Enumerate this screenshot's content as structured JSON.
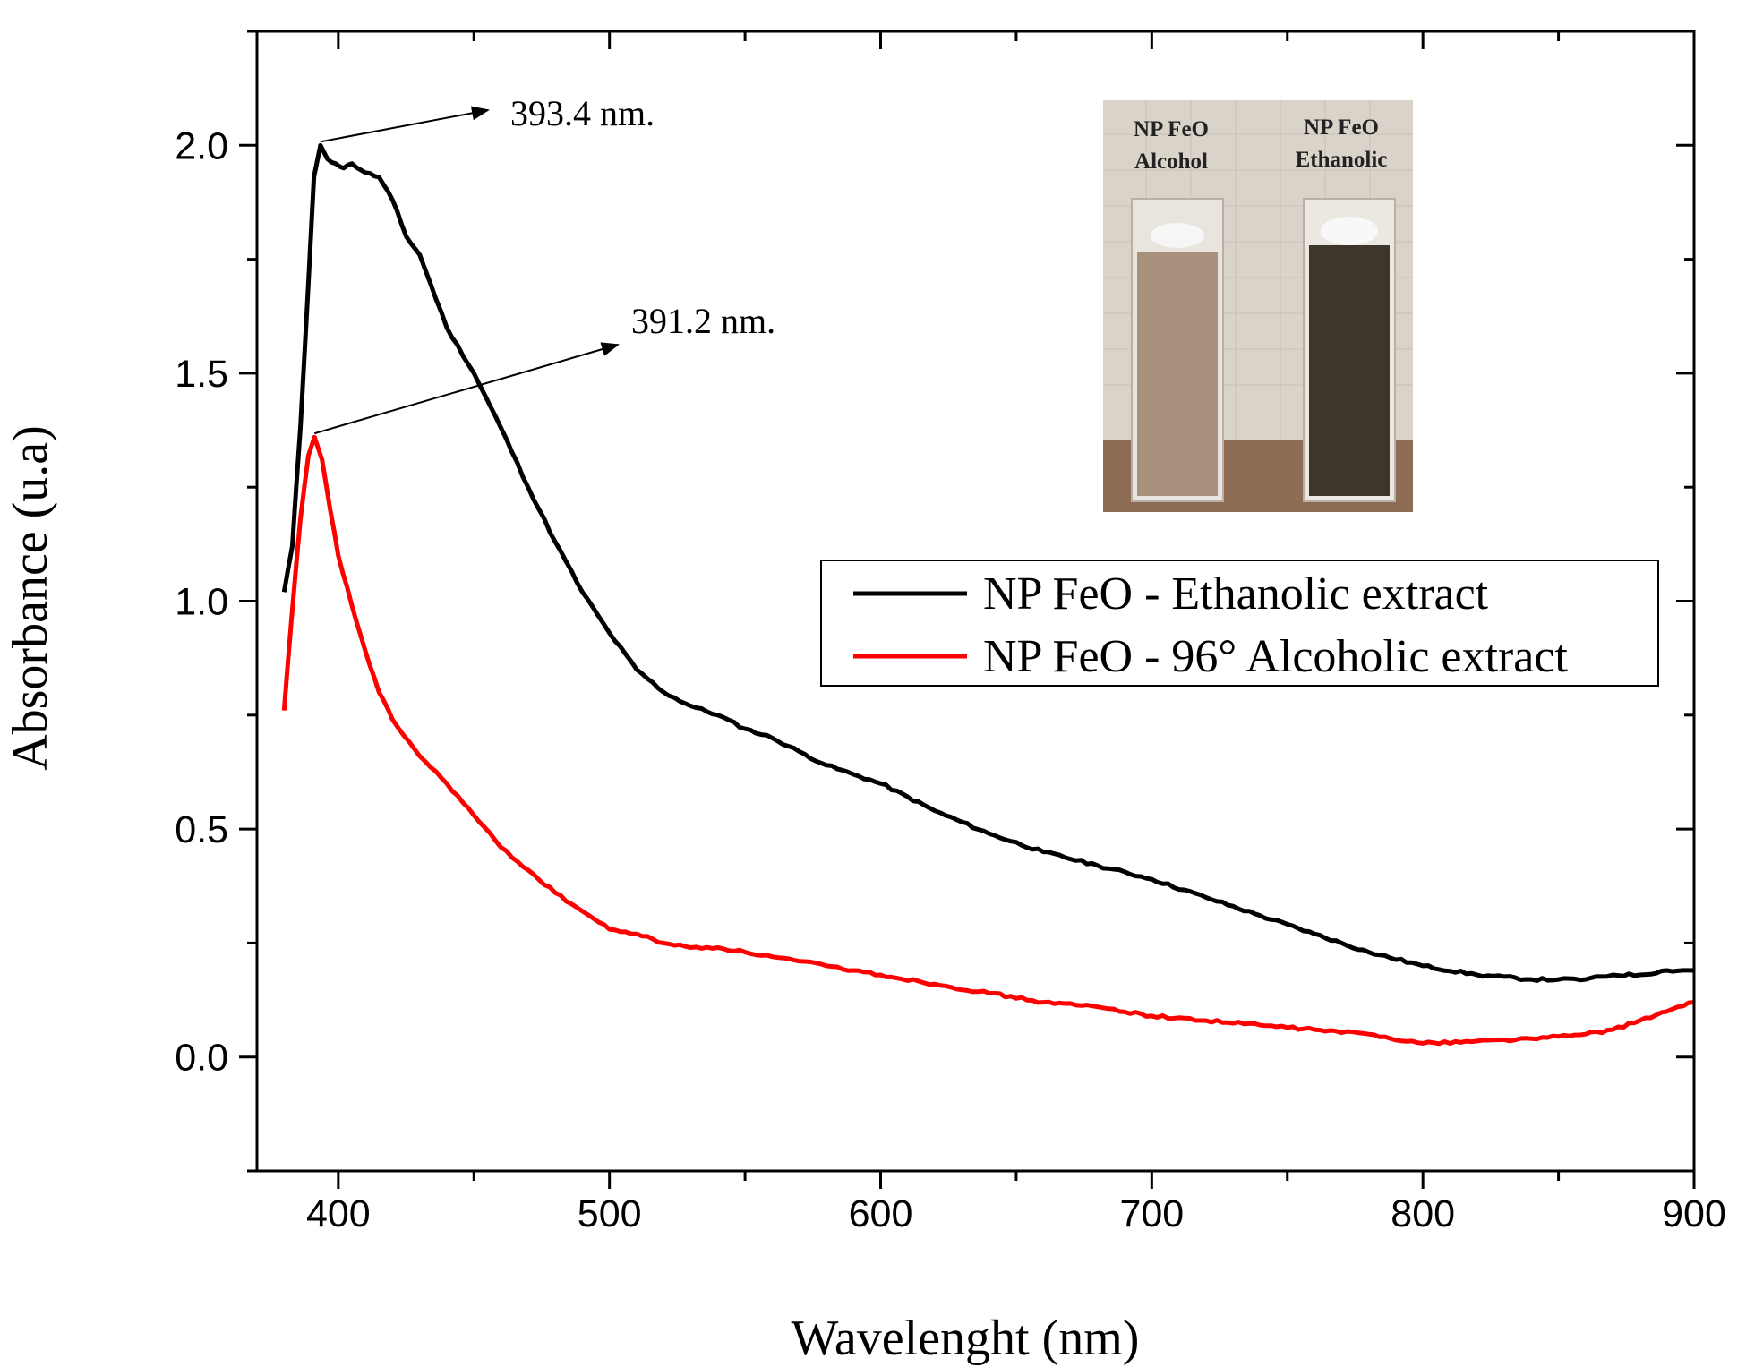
{
  "chart_data": {
    "type": "line",
    "xlabel": "Wavelenght (nm)",
    "ylabel": "Absorbance (u.a)",
    "xlim": [
      370,
      900
    ],
    "ylim": [
      -0.25,
      2.25
    ],
    "x_ticks": [
      400,
      500,
      600,
      700,
      800,
      900
    ],
    "y_ticks": [
      0.0,
      0.5,
      1.0,
      1.5,
      2.0
    ],
    "x_tick_labels": [
      "400",
      "500",
      "600",
      "700",
      "800",
      "900"
    ],
    "y_tick_labels": [
      "0.0",
      "0.5",
      "1.0",
      "1.5",
      "2.0"
    ],
    "grid": false,
    "legend_position": "right",
    "series": [
      {
        "name": "NP FeO - Ethanolic extract",
        "color": "#000000",
        "x": [
          380,
          383,
          386,
          389,
          391,
          393.4,
          396,
          399,
          402,
          405,
          410,
          415,
          420,
          425,
          430,
          440,
          450,
          460,
          470,
          480,
          490,
          500,
          510,
          520,
          530,
          540,
          550,
          560,
          570,
          580,
          590,
          600,
          620,
          640,
          660,
          680,
          700,
          720,
          740,
          760,
          780,
          800,
          820,
          840,
          850,
          860,
          870,
          880,
          890,
          900
        ],
        "y": [
          1.02,
          1.12,
          1.38,
          1.7,
          1.93,
          2.0,
          1.97,
          1.96,
          1.95,
          1.96,
          1.94,
          1.93,
          1.88,
          1.8,
          1.76,
          1.6,
          1.5,
          1.38,
          1.25,
          1.13,
          1.02,
          0.93,
          0.85,
          0.8,
          0.77,
          0.75,
          0.72,
          0.7,
          0.67,
          0.64,
          0.62,
          0.6,
          0.54,
          0.49,
          0.45,
          0.42,
          0.39,
          0.35,
          0.31,
          0.27,
          0.23,
          0.2,
          0.18,
          0.17,
          0.17,
          0.17,
          0.18,
          0.18,
          0.19,
          0.19
        ]
      },
      {
        "name": "NP FeO - 96° Alcoholic extract",
        "color": "#ff0000",
        "x": [
          380,
          383,
          386,
          389,
          391.2,
          394,
          397,
          400,
          405,
          410,
          415,
          420,
          430,
          440,
          450,
          460,
          470,
          480,
          490,
          500,
          510,
          520,
          530,
          540,
          550,
          560,
          570,
          580,
          590,
          600,
          620,
          640,
          660,
          680,
          700,
          720,
          740,
          760,
          780,
          800,
          820,
          840,
          850,
          860,
          870,
          880,
          890,
          900
        ],
        "y": [
          0.76,
          0.98,
          1.18,
          1.32,
          1.36,
          1.31,
          1.2,
          1.1,
          0.99,
          0.89,
          0.8,
          0.74,
          0.66,
          0.6,
          0.53,
          0.46,
          0.41,
          0.36,
          0.32,
          0.28,
          0.27,
          0.25,
          0.24,
          0.24,
          0.23,
          0.22,
          0.21,
          0.2,
          0.19,
          0.18,
          0.16,
          0.14,
          0.12,
          0.11,
          0.09,
          0.08,
          0.07,
          0.06,
          0.05,
          0.03,
          0.035,
          0.04,
          0.045,
          0.05,
          0.06,
          0.08,
          0.1,
          0.12
        ]
      }
    ],
    "annotations": [
      {
        "text": "393.4 nm.",
        "x": 393.4,
        "y": 2.0
      },
      {
        "text": "391.2 nm.",
        "x": 391.2,
        "y": 1.36
      }
    ]
  },
  "inset": {
    "left_label_line1": "NP FeO",
    "left_label_line2": "Alcohol",
    "right_label_line1": "NP FeO",
    "right_label_line2": "Ethanolic"
  }
}
